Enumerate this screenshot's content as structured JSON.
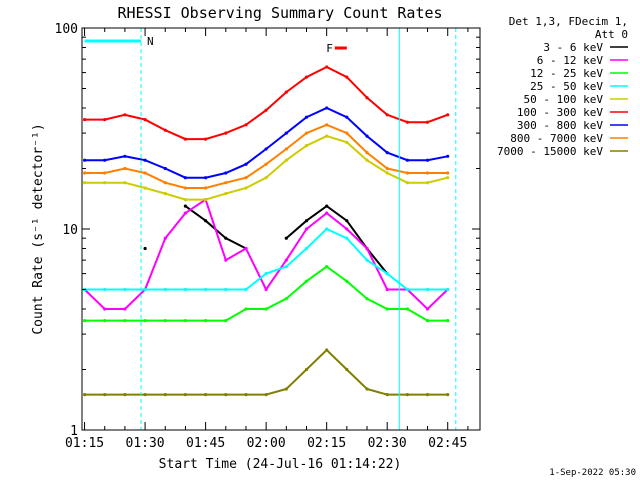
{
  "chart_data": {
    "type": "line",
    "title": "RHESSI Observing Summary Count Rates",
    "xlabel": "Start Time (24-Jul-16 01:14:22)",
    "ylabel": "Count Rate (s⁻¹ detector⁻¹)",
    "y_scale": "log",
    "ylim": [
      1,
      100
    ],
    "xlim": [
      "01:14:22",
      "02:53:00"
    ],
    "x_ticks": [
      "01:15",
      "01:30",
      "01:45",
      "02:00",
      "02:15",
      "02:30",
      "02:45"
    ],
    "y_ticks": [
      "1",
      "10",
      "100"
    ],
    "legend_header": [
      "Det 1,3, FDecim 1,",
      "Att 0"
    ],
    "legend_position": "top-right",
    "footer": "1-Sep-2022 05:30",
    "markers": [
      {
        "label": "N",
        "color": "#00ffff",
        "start": "01:15",
        "end": "01:29"
      },
      {
        "label": "F",
        "color": "#ff0000",
        "start": "02:17",
        "end": "02:20"
      }
    ],
    "night_boundaries": [
      "01:29",
      "02:33",
      "02:47"
    ],
    "x": [
      "01:15",
      "01:20",
      "01:25",
      "01:30",
      "01:35",
      "01:40",
      "01:45",
      "01:50",
      "01:55",
      "02:00",
      "02:05",
      "02:10",
      "02:15",
      "02:20",
      "02:25",
      "02:30",
      "02:35",
      "02:40",
      "02:45"
    ],
    "series": [
      {
        "name": "3 - 6 keV",
        "color": "#000000",
        "values": [
          0,
          0,
          0,
          8,
          0,
          13,
          11,
          9,
          8,
          0,
          9,
          11,
          13,
          11,
          8,
          6,
          0,
          0,
          0
        ]
      },
      {
        "name": "6 - 12 keV",
        "color": "#ff00ff",
        "values": [
          5,
          4,
          4,
          5,
          9,
          12,
          14,
          7,
          8,
          5,
          7,
          10,
          12,
          10,
          8,
          5,
          5,
          4,
          5
        ]
      },
      {
        "name": "12 - 25 keV",
        "color": "#00ff00",
        "values": [
          3.5,
          3.5,
          3.5,
          3.5,
          3.5,
          3.5,
          3.5,
          3.5,
          4,
          4,
          4.5,
          5.5,
          6.5,
          5.5,
          4.5,
          4,
          4,
          3.5,
          3.5
        ]
      },
      {
        "name": "25 - 50 keV",
        "color": "#00ffff",
        "values": [
          5,
          5,
          5,
          5,
          5,
          5,
          5,
          5,
          5,
          6,
          6.5,
          8,
          10,
          9,
          7,
          6,
          5,
          5,
          5
        ]
      },
      {
        "name": "50 - 100 keV",
        "color": "#cccc00",
        "values": [
          17,
          17,
          17,
          16,
          15,
          14,
          14,
          15,
          16,
          18,
          22,
          26,
          29,
          27,
          22,
          19,
          17,
          17,
          18
        ]
      },
      {
        "name": "100 - 300 keV",
        "color": "#ff0000",
        "values": [
          35,
          35,
          37,
          35,
          31,
          28,
          28,
          30,
          33,
          39,
          48,
          57,
          64,
          57,
          45,
          37,
          34,
          34,
          37
        ]
      },
      {
        "name": "300 - 800 keV",
        "color": "#0000ff",
        "values": [
          22,
          22,
          23,
          22,
          20,
          18,
          18,
          19,
          21,
          25,
          30,
          36,
          40,
          36,
          29,
          24,
          22,
          22,
          23
        ]
      },
      {
        "name": "800 - 7000 keV",
        "color": "#ff8000",
        "values": [
          19,
          19,
          20,
          19,
          17,
          16,
          16,
          17,
          18,
          21,
          25,
          30,
          33,
          30,
          24,
          20,
          19,
          19,
          19
        ]
      },
      {
        "name": "7000 - 15000 keV",
        "color": "#808000",
        "values": [
          1.5,
          1.5,
          1.5,
          1.5,
          1.5,
          1.5,
          1.5,
          1.5,
          1.5,
          1.5,
          1.6,
          2,
          2.5,
          2,
          1.6,
          1.5,
          1.5,
          1.5,
          1.5
        ]
      }
    ]
  }
}
